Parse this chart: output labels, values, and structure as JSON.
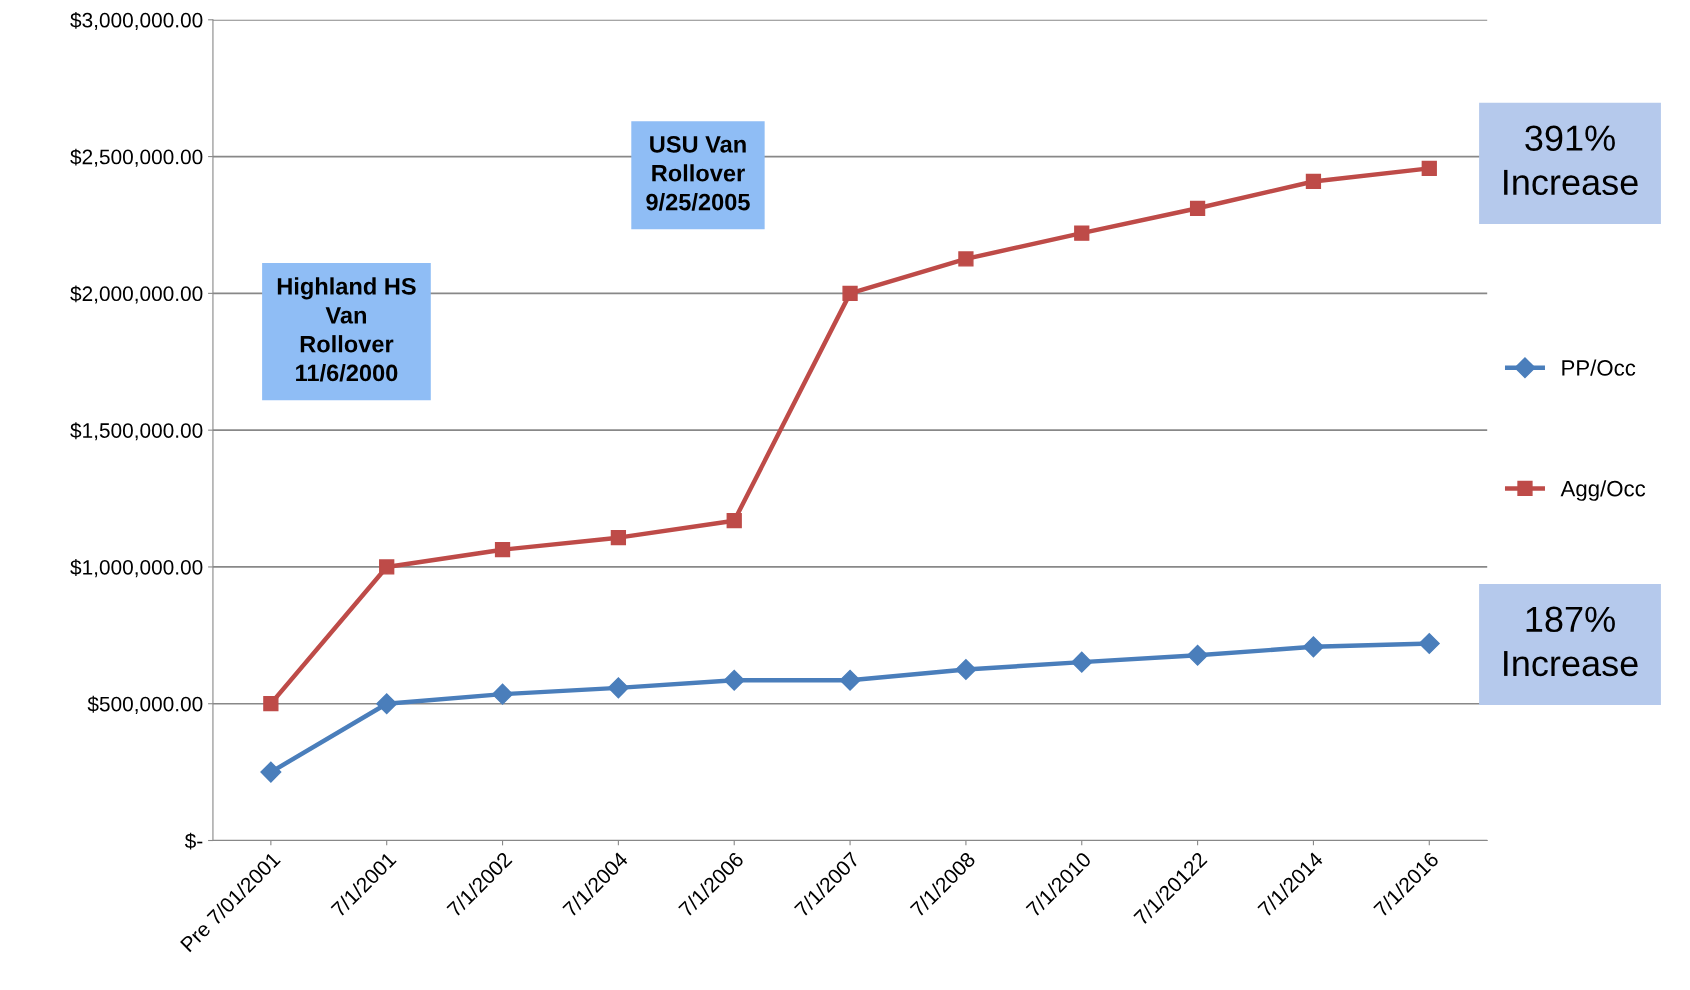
{
  "chart_data": {
    "type": "line",
    "categories": [
      "Pre 7/01/2001",
      "7/1/2001",
      "7/1/2002",
      "7/1/2004",
      "7/1/2006",
      "7/1/2007",
      "7/1/2008",
      "7/1/2010",
      "7/1/20122",
      "7/1/2014",
      "7/1/2016"
    ],
    "series": [
      {
        "name": "PP/Occ",
        "color": "#4a7ebb",
        "marker": "diamond",
        "values": [
          250000,
          500000,
          535000,
          558000,
          586000,
          586000,
          625000,
          652000,
          677000,
          708000,
          720000
        ]
      },
      {
        "name": "Agg/Occ",
        "color": "#be4b48",
        "marker": "square",
        "values": [
          500000,
          1000000,
          1063000,
          1107000,
          1169000,
          2000000,
          2126000,
          2220000,
          2311000,
          2409000,
          2457000
        ]
      }
    ],
    "ylim": [
      0,
      3000000
    ],
    "yticks": [
      {
        "value": 0,
        "label": "$-"
      },
      {
        "value": 500000,
        "label": "$500,000.00"
      },
      {
        "value": 1000000,
        "label": "$1,000,000.00"
      },
      {
        "value": 1500000,
        "label": "$1,500,000.00"
      },
      {
        "value": 2000000,
        "label": "$2,000,000.00"
      },
      {
        "value": 2500000,
        "label": "$2,500,000.00"
      },
      {
        "value": 3000000,
        "label": "$3,000,000.00"
      }
    ],
    "grid": "y",
    "legend": "right",
    "line_style": "solid",
    "annotations": [
      "Highland HS\nVan\nRollover\n11/6/2000",
      "USU Van\nRollover\n9/25/2005",
      "391%\nIncrease",
      "187%\nIncrease"
    ]
  }
}
